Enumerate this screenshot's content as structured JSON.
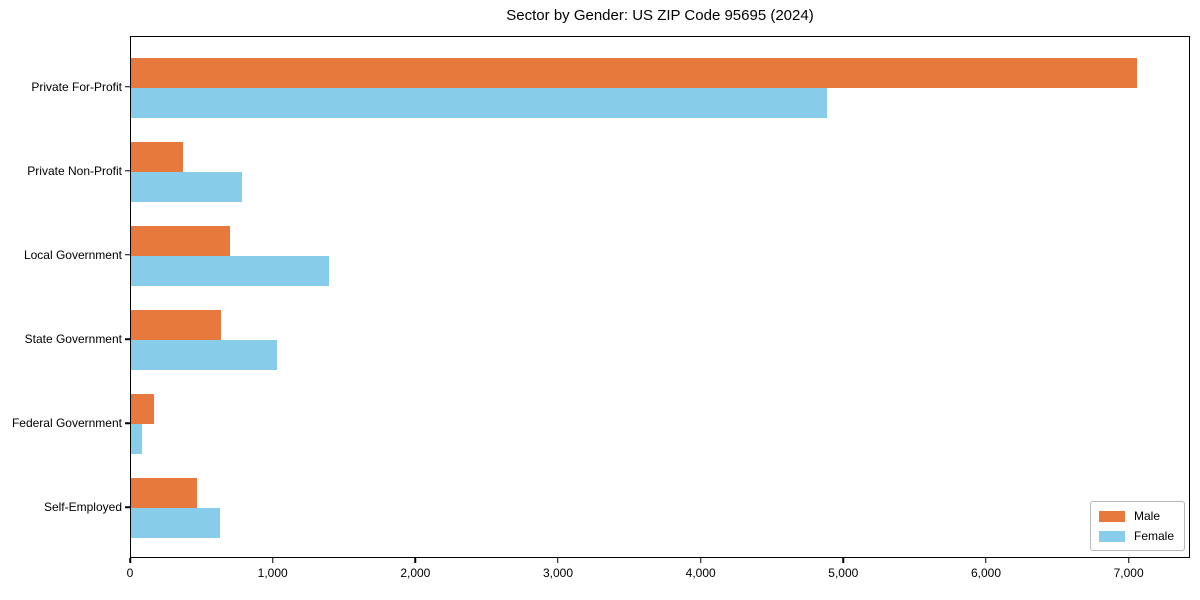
{
  "title": "Sector by Gender: US ZIP Code 95695 (2024)",
  "chart_data": {
    "type": "bar",
    "orientation": "horizontal",
    "title": "Sector by Gender: US ZIP Code 95695 (2024)",
    "categories": [
      "Private For-Profit",
      "Private Non-Profit",
      "Local Government",
      "State Government",
      "Federal Government",
      "Self-Employed"
    ],
    "series": [
      {
        "name": "Male",
        "color": "#E8793D",
        "values": [
          7050,
          365,
          695,
          630,
          160,
          465
        ]
      },
      {
        "name": "Female",
        "color": "#87CDE9",
        "values": [
          4880,
          780,
          1390,
          1020,
          77,
          625
        ]
      }
    ],
    "xlim": [
      0,
      7430
    ],
    "xticks": [
      0,
      1000,
      2000,
      3000,
      4000,
      5000,
      6000,
      7000
    ],
    "xtick_labels": [
      "0",
      "1,000",
      "2,000",
      "3,000",
      "4,000",
      "5,000",
      "6,000",
      "7,000"
    ],
    "xlabel": "",
    "ylabel": "",
    "grid": false,
    "legend": {
      "position": "lower right",
      "entries": [
        {
          "label": "Male",
          "color": "#E8793D"
        },
        {
          "label": "Female",
          "color": "#87CDE9"
        }
      ]
    }
  }
}
